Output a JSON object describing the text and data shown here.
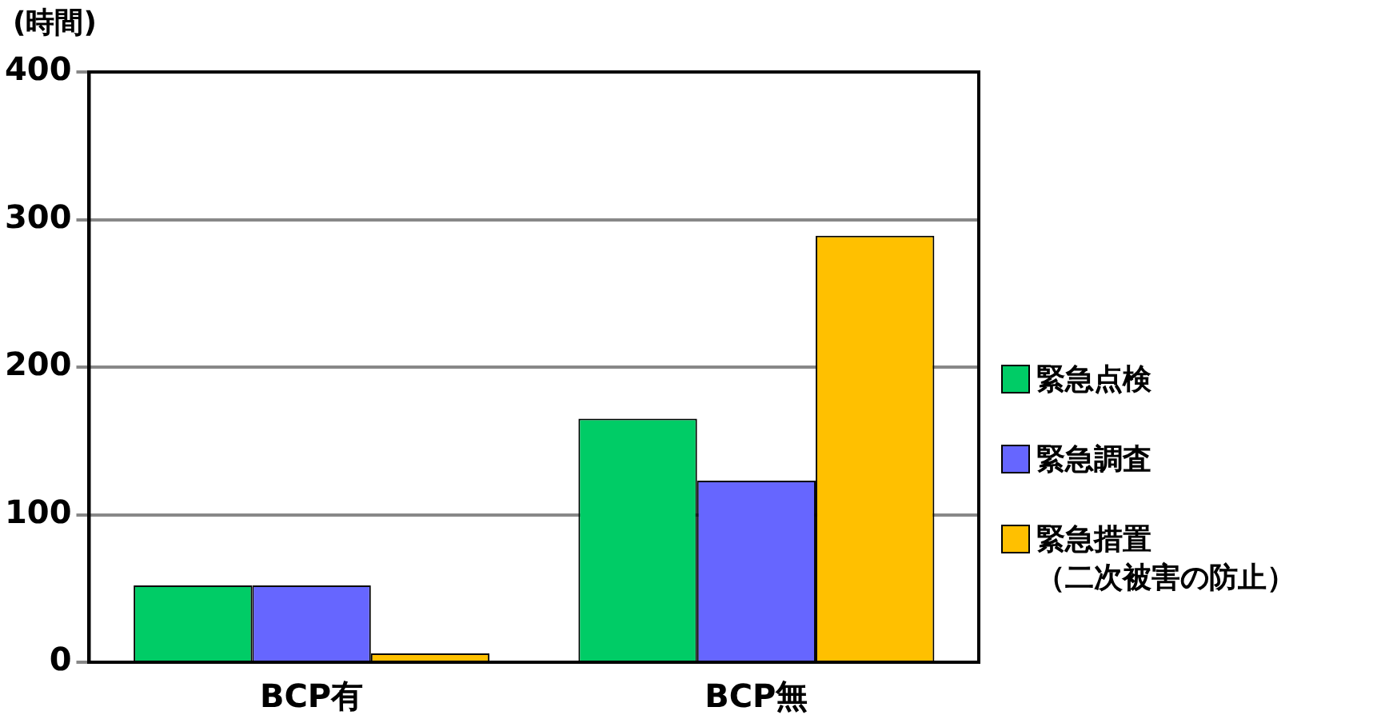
{
  "chart_data": {
    "type": "bar",
    "ylabel": "(時間)",
    "categories": [
      "BCP有",
      "BCP無"
    ],
    "series": [
      {
        "name": "緊急点検",
        "color": "#00cc66",
        "values": [
          52,
          165
        ]
      },
      {
        "name": "緊急調査",
        "color": "#6666ff",
        "values": [
          52,
          123
        ]
      },
      {
        "name": "緊急措置（二次被害の防止）",
        "color": "#ffc000",
        "values": [
          6,
          289
        ]
      }
    ],
    "ylim": [
      0,
      400
    ],
    "yticks": [
      0,
      100,
      200,
      300,
      400
    ],
    "grid": "y",
    "legend": "right"
  }
}
